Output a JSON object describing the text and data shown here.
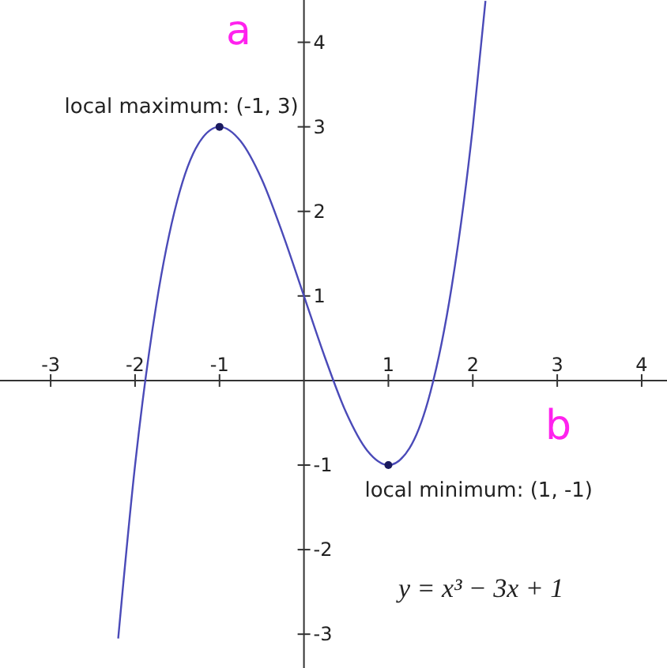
{
  "chart_data": {
    "type": "line",
    "xlim": [
      -3.6,
      4.3
    ],
    "ylim": [
      -3.4,
      4.5
    ],
    "xticks": [
      -3,
      -2,
      -1,
      1,
      2,
      3,
      4
    ],
    "yticks": [
      -3,
      -2,
      -1,
      1,
      2,
      3,
      4
    ],
    "grid": false,
    "marker": "none",
    "line_style": "solid",
    "series": [
      {
        "color": "#4a4ab8",
        "x": [
          -2.2,
          -2,
          -1.75,
          -1.5,
          -1.25,
          -1,
          -0.75,
          -0.5,
          -0.25,
          0,
          0.25,
          0.5,
          0.75,
          1,
          1.25,
          1.5,
          1.75,
          2,
          2.15
        ],
        "values": [
          -3.05,
          -1,
          0.89,
          2.13,
          2.8,
          3,
          2.83,
          2.38,
          1.73,
          1,
          0.27,
          -0.38,
          -0.83,
          -1,
          -0.8,
          -0.13,
          1.11,
          3,
          4.49
        ]
      },
      {
        "type": "scatter",
        "marker": "circle",
        "color": "#1a1a5e",
        "x": [
          -1,
          1
        ],
        "values": [
          3,
          -1
        ]
      }
    ],
    "annotations": [
      {
        "text": "local maximum: (-1, 3)",
        "x": -1,
        "y": 3
      },
      {
        "text": "local minimum: (1, -1)",
        "x": 1,
        "y": -1
      },
      "y = x³ − 3x + 1",
      "a",
      "b"
    ]
  }
}
